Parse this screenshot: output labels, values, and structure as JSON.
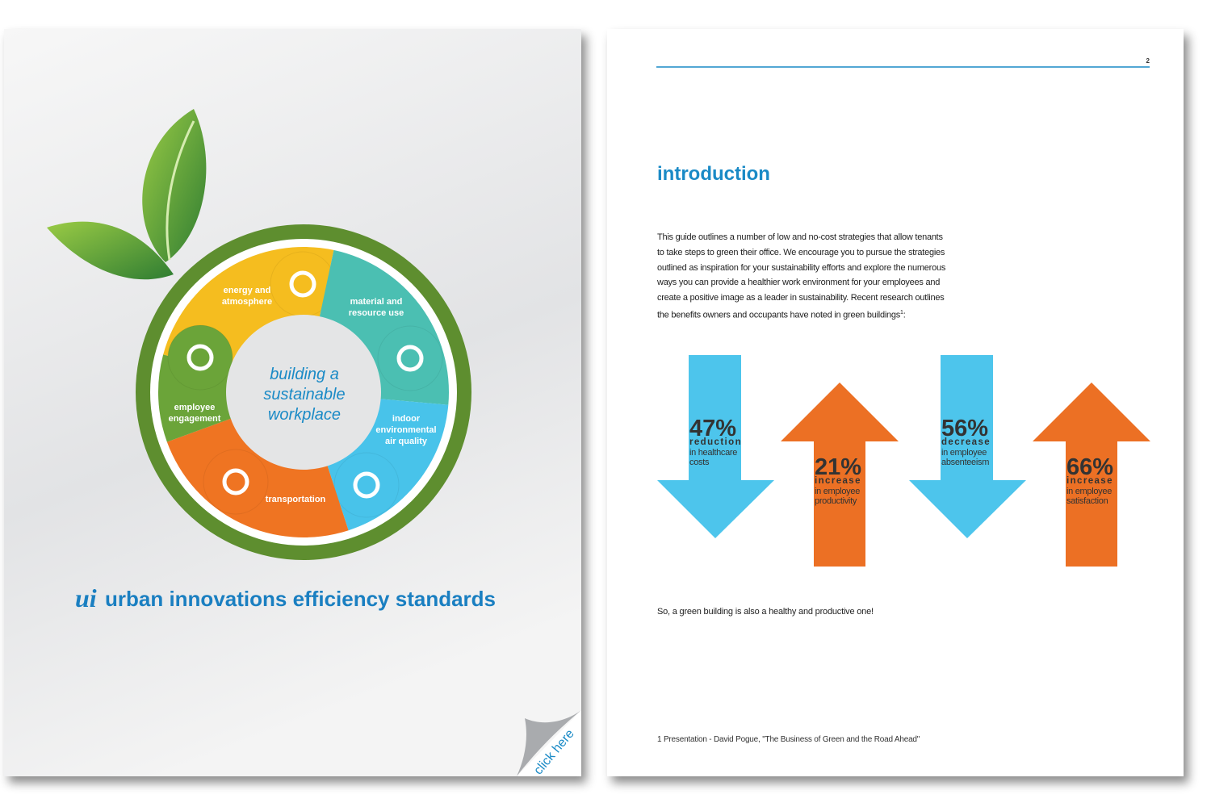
{
  "cover": {
    "wheel_center": [
      "building a",
      "sustainable",
      "workplace"
    ],
    "segments": [
      {
        "label": [
          "energy and",
          "atmosphere"
        ]
      },
      {
        "label": [
          "material and",
          "resource use"
        ]
      },
      {
        "label": [
          "indoor",
          "environmental",
          "air quality"
        ]
      },
      {
        "label": [
          "transportation"
        ]
      },
      {
        "label": [
          "employee",
          "engagement"
        ]
      }
    ],
    "logo": "ui",
    "title": "urban innovations efficiency standards",
    "corner": "click here"
  },
  "page": {
    "number": "2",
    "heading": "introduction",
    "paragraph": "This guide outlines a number of low and no-cost strategies that allow tenants to take steps to green their office. We encourage you to pursue the strategies outlined as inspiration for your sustainability efforts and explore the numerous ways you can provide a healthier work environment for your employees and create a positive image as a leader in sustainability. Recent research outlines the benefits owners and occupants have noted in green buildings",
    "paragraph_ref": "1",
    "paragraph_end": ":",
    "stats": [
      {
        "value": "47%",
        "word": "reduction",
        "detail": [
          "in healthcare",
          "costs"
        ]
      },
      {
        "value": "21%",
        "word": "increase",
        "detail": [
          "in  employee",
          "productivity"
        ]
      },
      {
        "value": "56%",
        "word": "decrease",
        "detail": [
          "in  employee",
          "absenteeism"
        ]
      },
      {
        "value": "66%",
        "word": "increase",
        "detail": [
          "in  employee",
          "satisfaction"
        ]
      }
    ],
    "closing": "So, a green building is also a healthy and productive one!",
    "footnote": "1  Presentation - David Pogue, \"The Business of Green and the Road Ahead\""
  }
}
